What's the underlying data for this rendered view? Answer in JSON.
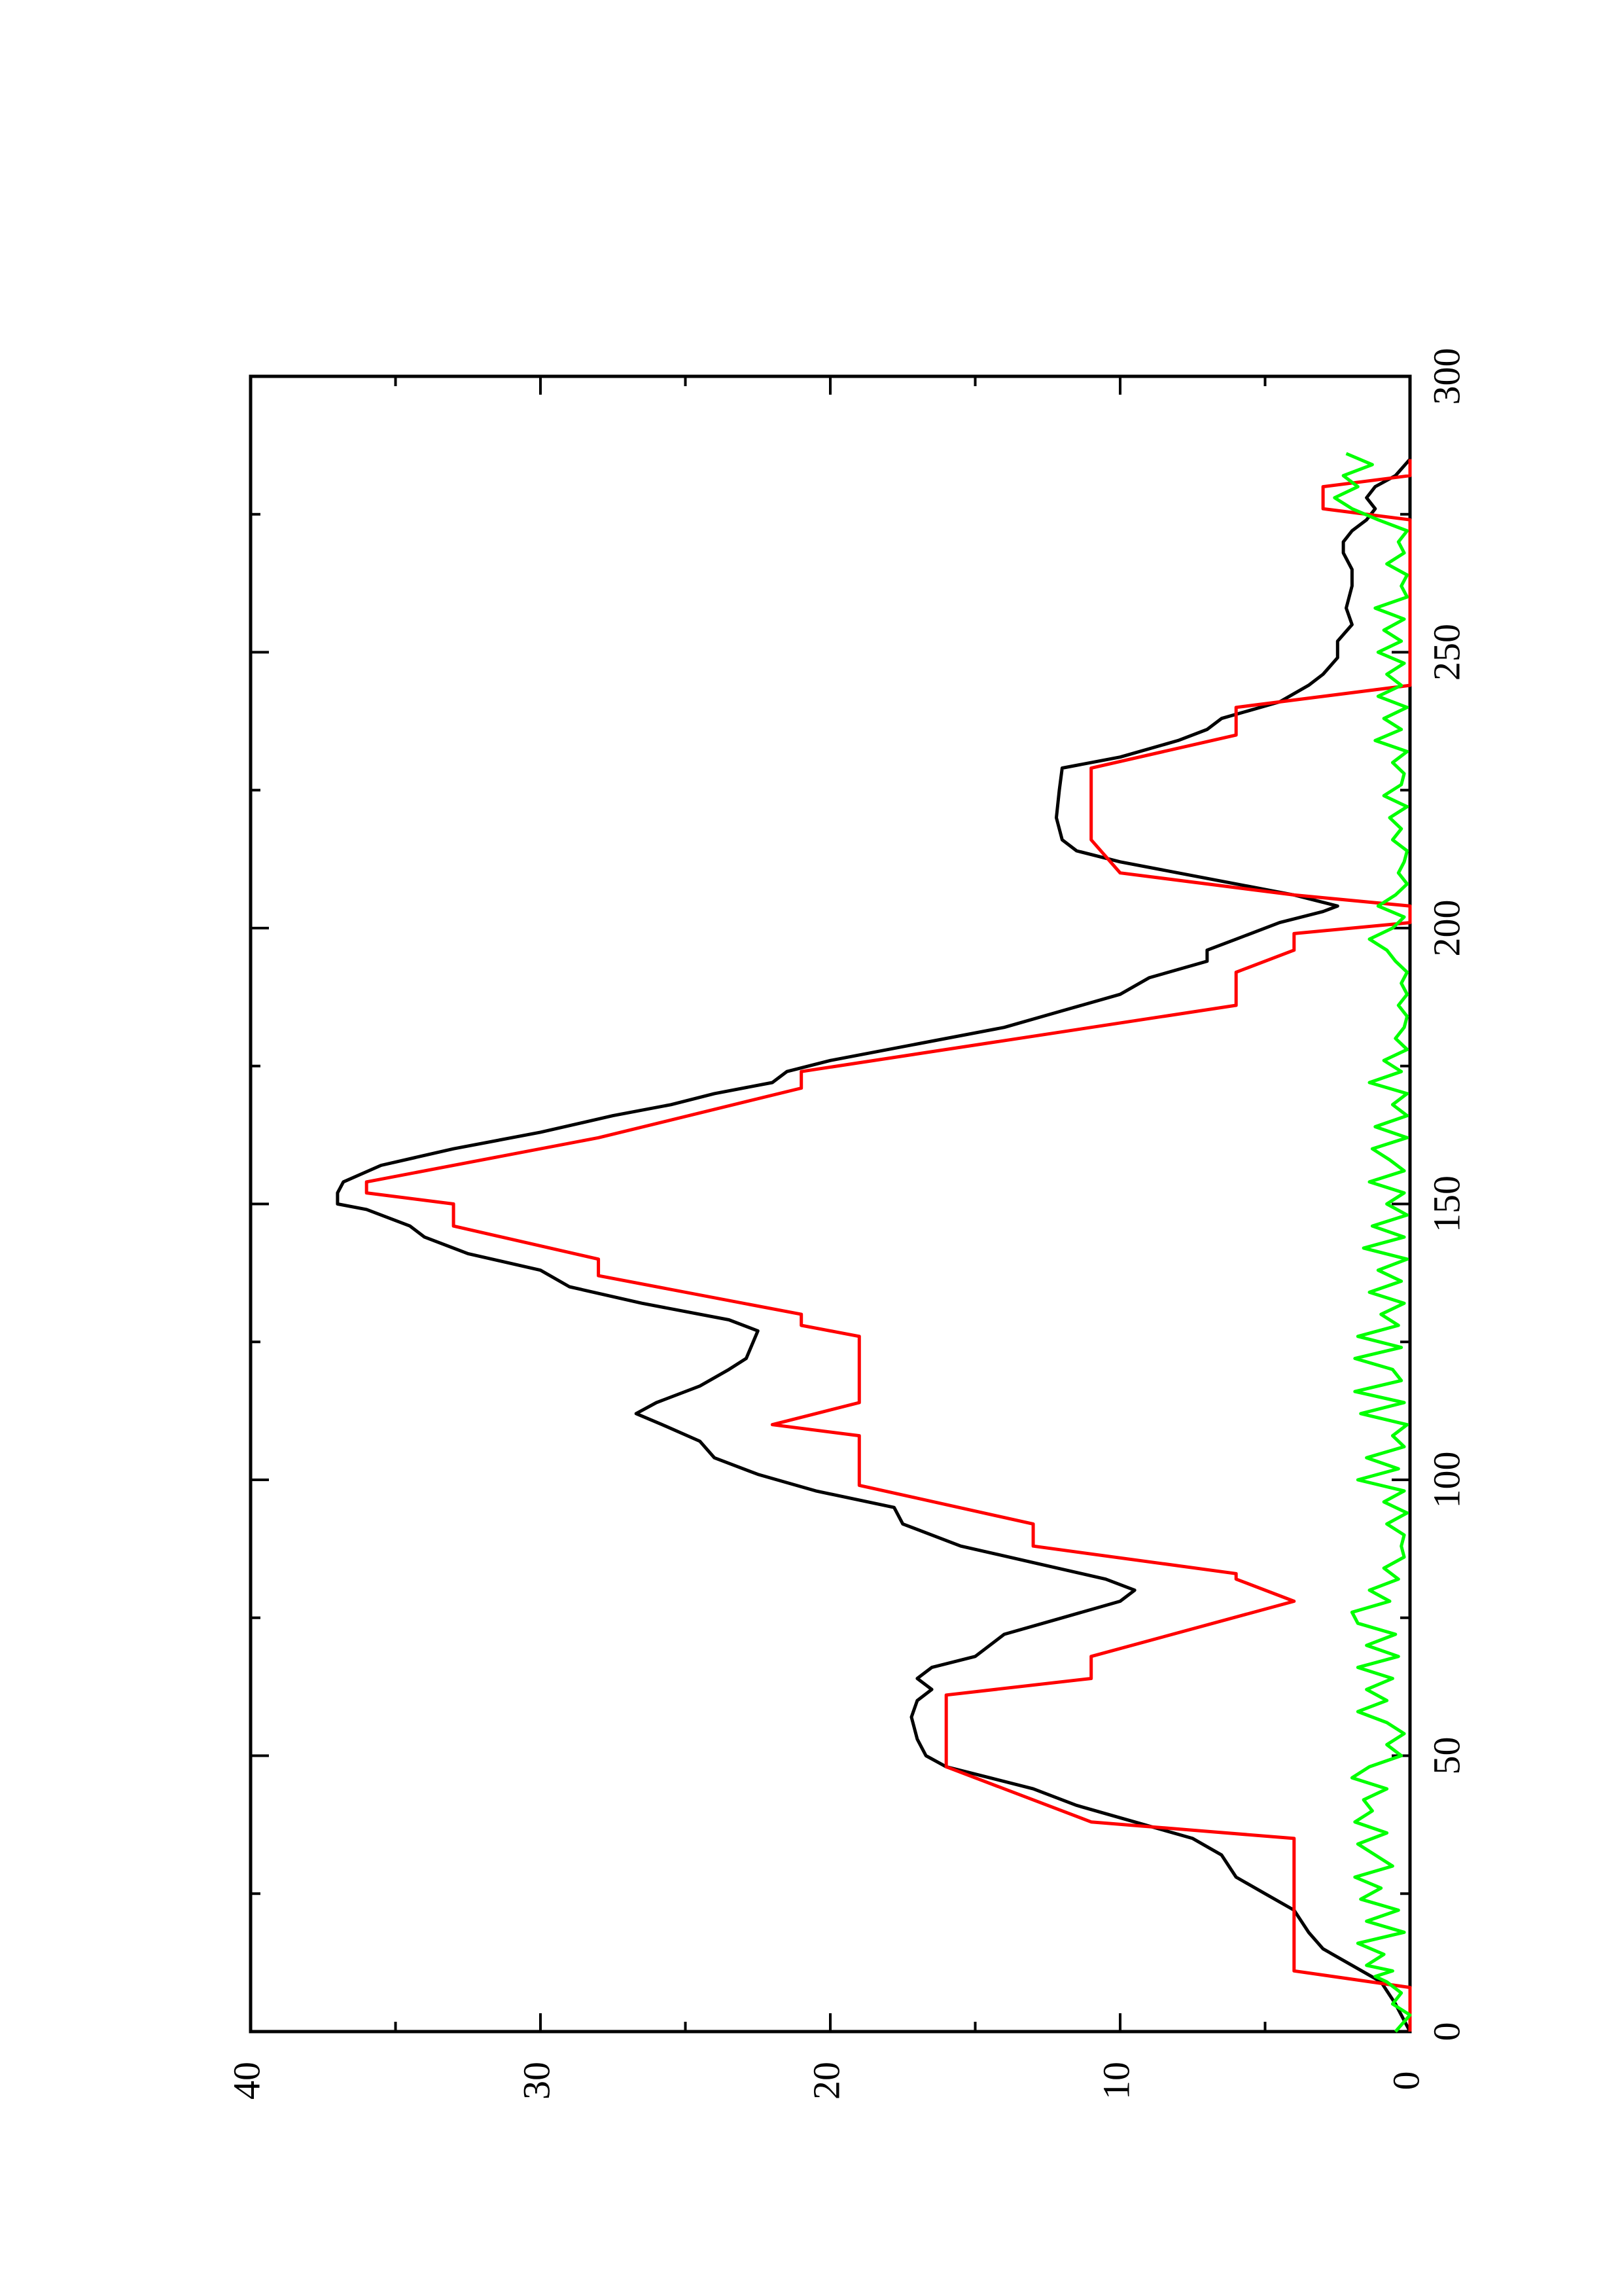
{
  "chart_data": {
    "type": "line",
    "orientation": "rotated-90-ccw",
    "x_axis": {
      "range": [
        0,
        300
      ],
      "major_ticks": [
        0,
        50,
        100,
        150,
        200,
        250,
        300
      ],
      "minor_ticks": [
        25,
        75,
        125,
        175,
        225,
        275
      ],
      "tick_labels": [
        "0",
        "50",
        "100",
        "150",
        "200",
        "250",
        "300"
      ]
    },
    "y_axis": {
      "range": [
        0,
        40
      ],
      "major_ticks": [
        0,
        10,
        20,
        30,
        40
      ],
      "minor_ticks": [
        5,
        15,
        25,
        35
      ],
      "tick_labels": [
        "0",
        "10",
        "20",
        "30",
        "40"
      ]
    },
    "grid": false,
    "legend": "none",
    "series": [
      {
        "color": "#000000",
        "points": [
          [
            0,
            0
          ],
          [
            5,
            0.5
          ],
          [
            9,
            1
          ],
          [
            12,
            2
          ],
          [
            15,
            3
          ],
          [
            18,
            3.5
          ],
          [
            22,
            4
          ],
          [
            25,
            5
          ],
          [
            28,
            6
          ],
          [
            32,
            6.5
          ],
          [
            35,
            7.5
          ],
          [
            38,
            9.5
          ],
          [
            41,
            11.5
          ],
          [
            44,
            13
          ],
          [
            46,
            14.5
          ],
          [
            48,
            16
          ],
          [
            50,
            16.7
          ],
          [
            53,
            17
          ],
          [
            57,
            17.2
          ],
          [
            60,
            17
          ],
          [
            62,
            16.5
          ],
          [
            64,
            17
          ],
          [
            66,
            16.5
          ],
          [
            68,
            15
          ],
          [
            72,
            14
          ],
          [
            75,
            12
          ],
          [
            78,
            10
          ],
          [
            80,
            9.5
          ],
          [
            82,
            10.5
          ],
          [
            85,
            13
          ],
          [
            88,
            15.5
          ],
          [
            92,
            17.5
          ],
          [
            95,
            17.8
          ],
          [
            98,
            20.5
          ],
          [
            101,
            22.5
          ],
          [
            104,
            24
          ],
          [
            107,
            24.5
          ],
          [
            110,
            25.8
          ],
          [
            112,
            26.7
          ],
          [
            114,
            26
          ],
          [
            117,
            24.5
          ],
          [
            120,
            23.5
          ],
          [
            122,
            22.9
          ],
          [
            127,
            22.5
          ],
          [
            129,
            23.5
          ],
          [
            132,
            26.5
          ],
          [
            135,
            29
          ],
          [
            138,
            30
          ],
          [
            141,
            32.5
          ],
          [
            144,
            34
          ],
          [
            146,
            34.5
          ],
          [
            149,
            36
          ],
          [
            150,
            37
          ],
          [
            152,
            37
          ],
          [
            154,
            36.8
          ],
          [
            157,
            35.5
          ],
          [
            160,
            33
          ],
          [
            163,
            30
          ],
          [
            166,
            27.5
          ],
          [
            168,
            25.5
          ],
          [
            170,
            24
          ],
          [
            172,
            22
          ],
          [
            174,
            21.5
          ],
          [
            176,
            20
          ],
          [
            179,
            17
          ],
          [
            182,
            14
          ],
          [
            185,
            12
          ],
          [
            188,
            10
          ],
          [
            191,
            9
          ],
          [
            194,
            7
          ],
          [
            196,
            7
          ],
          [
            198,
            6
          ],
          [
            201,
            4.5
          ],
          [
            203,
            3
          ],
          [
            204,
            2.5
          ],
          [
            206,
            4
          ],
          [
            208,
            6
          ],
          [
            210,
            8
          ],
          [
            212,
            10
          ],
          [
            214,
            11.5
          ],
          [
            216,
            12
          ],
          [
            220,
            12.2
          ],
          [
            225,
            12.1
          ],
          [
            229,
            12
          ],
          [
            231,
            10
          ],
          [
            234,
            8
          ],
          [
            236,
            7
          ],
          [
            238,
            6.5
          ],
          [
            241,
            4.5
          ],
          [
            244,
            3.5
          ],
          [
            246,
            3
          ],
          [
            249,
            2.5
          ],
          [
            252,
            2.5
          ],
          [
            255,
            2
          ],
          [
            258,
            2.2
          ],
          [
            262,
            2
          ],
          [
            265,
            2
          ],
          [
            268,
            2.3
          ],
          [
            270,
            2.3
          ],
          [
            272,
            2
          ],
          [
            274,
            1.5
          ],
          [
            276,
            1.2
          ],
          [
            278,
            1.5
          ],
          [
            280,
            1.2
          ],
          [
            282,
            0.5
          ],
          [
            285,
            0
          ]
        ]
      },
      {
        "color": "#ff0000",
        "points": [
          [
            0,
            0
          ],
          [
            8,
            0
          ],
          [
            11,
            4
          ],
          [
            35,
            4
          ],
          [
            38,
            11
          ],
          [
            48,
            16
          ],
          [
            61,
            16
          ],
          [
            64,
            11
          ],
          [
            68,
            11
          ],
          [
            78,
            4
          ],
          [
            82,
            6
          ],
          [
            83,
            6
          ],
          [
            88,
            13
          ],
          [
            92,
            13
          ],
          [
            99,
            19
          ],
          [
            108,
            19
          ],
          [
            110,
            22
          ],
          [
            114,
            19
          ],
          [
            126,
            19
          ],
          [
            128,
            21
          ],
          [
            130,
            21
          ],
          [
            137,
            28
          ],
          [
            140,
            28
          ],
          [
            146,
            33
          ],
          [
            150,
            33
          ],
          [
            152,
            36
          ],
          [
            154,
            36
          ],
          [
            162,
            28
          ],
          [
            171,
            21
          ],
          [
            174,
            21
          ],
          [
            186,
            6
          ],
          [
            192,
            6
          ],
          [
            196,
            4
          ],
          [
            199,
            4
          ],
          [
            201,
            0
          ],
          [
            204,
            0
          ],
          [
            206,
            4
          ],
          [
            210,
            10
          ],
          [
            216,
            11
          ],
          [
            229,
            11
          ],
          [
            235,
            6
          ],
          [
            240,
            6
          ],
          [
            244,
            0
          ],
          [
            274,
            0
          ],
          [
            276,
            3
          ],
          [
            280,
            3
          ],
          [
            282,
            0
          ],
          [
            285,
            0
          ]
        ]
      },
      {
        "color": "#00ff00",
        "points": [
          [
            0,
            0.5
          ],
          [
            3,
            0
          ],
          [
            5,
            0.6
          ],
          [
            7,
            0.3
          ],
          [
            9,
            0.8
          ],
          [
            10,
            1.2
          ],
          [
            11,
            0.6
          ],
          [
            12,
            1.5
          ],
          [
            14,
            0.9
          ],
          [
            16,
            1.8
          ],
          [
            18,
            0.2
          ],
          [
            20,
            1.5
          ],
          [
            22,
            0.4
          ],
          [
            24,
            1.7
          ],
          [
            26,
            1
          ],
          [
            28,
            1.9
          ],
          [
            30,
            0.6
          ],
          [
            32,
            1.2
          ],
          [
            34,
            1.8
          ],
          [
            36,
            0.8
          ],
          [
            38,
            1.9
          ],
          [
            40,
            1.3
          ],
          [
            42,
            1.6
          ],
          [
            44,
            0.8
          ],
          [
            46,
            2
          ],
          [
            48,
            1.4
          ],
          [
            50,
            0.3
          ],
          [
            52,
            0.8
          ],
          [
            54,
            0.2
          ],
          [
            56,
            0.8
          ],
          [
            58,
            1.8
          ],
          [
            60,
            0.8
          ],
          [
            62,
            1.5
          ],
          [
            64,
            0.6
          ],
          [
            66,
            1.8
          ],
          [
            68,
            0.4
          ],
          [
            70,
            1.5
          ],
          [
            72,
            0.5
          ],
          [
            74,
            1.8
          ],
          [
            76,
            2
          ],
          [
            78,
            0.7
          ],
          [
            80,
            1.4
          ],
          [
            82,
            0.4
          ],
          [
            84,
            0.9
          ],
          [
            86,
            0.2
          ],
          [
            88,
            0.3
          ],
          [
            90,
            0.2
          ],
          [
            92,
            0.8
          ],
          [
            94,
            0.1
          ],
          [
            96,
            0.9
          ],
          [
            98,
            0.2
          ],
          [
            100,
            1.8
          ],
          [
            102,
            0.4
          ],
          [
            104,
            1.5
          ],
          [
            106,
            0.2
          ],
          [
            108,
            0.6
          ],
          [
            110,
            0.1
          ],
          [
            112,
            1.7
          ],
          [
            114,
            0.2
          ],
          [
            116,
            1.9
          ],
          [
            118,
            0.3
          ],
          [
            120,
            0.6
          ],
          [
            122,
            1.9
          ],
          [
            124,
            0.3
          ],
          [
            126,
            1.8
          ],
          [
            128,
            0.4
          ],
          [
            130,
            1
          ],
          [
            132,
            0.2
          ],
          [
            134,
            1.4
          ],
          [
            136,
            0.3
          ],
          [
            138,
            1.1
          ],
          [
            140,
            0.1
          ],
          [
            142,
            1.6
          ],
          [
            144,
            0.2
          ],
          [
            146,
            1.3
          ],
          [
            148,
            0.1
          ],
          [
            150,
            0.8
          ],
          [
            152,
            0.2
          ],
          [
            154,
            1.4
          ],
          [
            156,
            0.2
          ],
          [
            158,
            0.7
          ],
          [
            160,
            1.3
          ],
          [
            162,
            0.1
          ],
          [
            164,
            1.2
          ],
          [
            166,
            0.1
          ],
          [
            168,
            0.6
          ],
          [
            170,
            0.1
          ],
          [
            172,
            1.4
          ],
          [
            174,
            0.3
          ],
          [
            176,
            0.9
          ],
          [
            178,
            0.1
          ],
          [
            180,
            0.5
          ],
          [
            182,
            0.2
          ],
          [
            184,
            0.1
          ],
          [
            186,
            0.4
          ],
          [
            188,
            0.1
          ],
          [
            190,
            0.3
          ],
          [
            192,
            0.1
          ],
          [
            194,
            0.5
          ],
          [
            196,
            0.8
          ],
          [
            198,
            1.4
          ],
          [
            200,
            0.6
          ],
          [
            202,
            0.2
          ],
          [
            204,
            1.1
          ],
          [
            206,
            0.5
          ],
          [
            208,
            0.1
          ],
          [
            210,
            0.4
          ],
          [
            212,
            0.2
          ],
          [
            214,
            0.1
          ],
          [
            216,
            0.6
          ],
          [
            218,
            0.3
          ],
          [
            220,
            0.7
          ],
          [
            222,
            0.1
          ],
          [
            224,
            0.9
          ],
          [
            226,
            0.3
          ],
          [
            228,
            0.2
          ],
          [
            230,
            0.6
          ],
          [
            232,
            0.1
          ],
          [
            234,
            1.2
          ],
          [
            236,
            0.3
          ],
          [
            238,
            0.9
          ],
          [
            240,
            0.1
          ],
          [
            242,
            1.1
          ],
          [
            244,
            0.3
          ],
          [
            246,
            0.8
          ],
          [
            248,
            0.2
          ],
          [
            250,
            1.1
          ],
          [
            252,
            0.3
          ],
          [
            254,
            0.9
          ],
          [
            256,
            0.2
          ],
          [
            258,
            1.2
          ],
          [
            260,
            0.1
          ],
          [
            262,
            0.3
          ],
          [
            264,
            0.1
          ],
          [
            266,
            0.8
          ],
          [
            268,
            0.2
          ],
          [
            270,
            0.4
          ],
          [
            272,
            0.1
          ],
          [
            274,
            1.1
          ],
          [
            276,
            2
          ],
          [
            278,
            2.6
          ],
          [
            280,
            1.8
          ],
          [
            282,
            2.3
          ],
          [
            284,
            1.3
          ],
          [
            286,
            2.2
          ]
        ]
      }
    ]
  }
}
